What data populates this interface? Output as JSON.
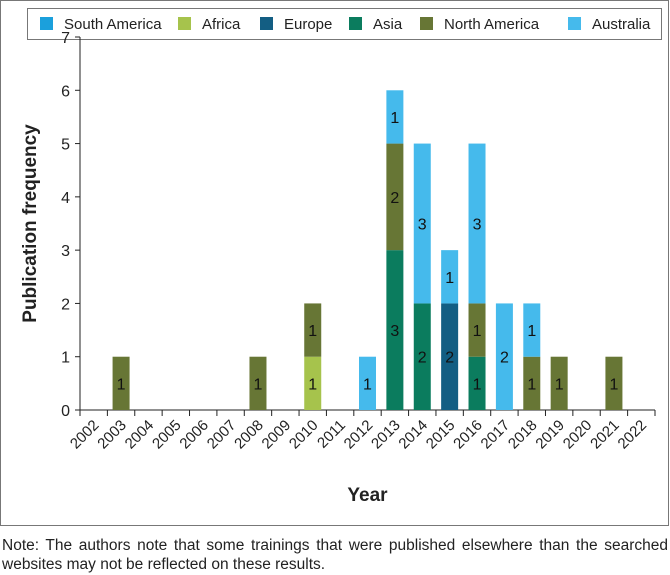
{
  "chart_data": {
    "type": "bar",
    "stacked": true,
    "xlabel": "Year",
    "ylabel": "Publication frequency",
    "ylim": [
      0,
      7
    ],
    "yticks": [
      0,
      1,
      2,
      3,
      4,
      5,
      6,
      7
    ],
    "legend_position": "top",
    "categories": [
      "2002",
      "2003",
      "2004",
      "2005",
      "2006",
      "2007",
      "2008",
      "2009",
      "2010",
      "2011",
      "2012",
      "2013",
      "2014",
      "2015",
      "2016",
      "2017",
      "2018",
      "2019",
      "2020",
      "2021",
      "2022"
    ],
    "legend": [
      {
        "name": "South America",
        "color": "#1ba0dc"
      },
      {
        "name": "Africa",
        "color": "#a6c34c"
      },
      {
        "name": "Europe",
        "color": "#135e83"
      },
      {
        "name": "Asia",
        "color": "#0b7c5e"
      },
      {
        "name": "North America",
        "color": "#677635"
      },
      {
        "name": "Australia",
        "color": "#45baec"
      }
    ],
    "bars": [
      {
        "year": "2003",
        "stack": [
          {
            "seg": "North America",
            "value": 1
          }
        ]
      },
      {
        "year": "2008",
        "stack": [
          {
            "seg": "North America",
            "value": 1
          }
        ]
      },
      {
        "year": "2010",
        "stack": [
          {
            "seg": "Africa",
            "value": 1
          },
          {
            "seg": "North America",
            "value": 1
          }
        ]
      },
      {
        "year": "2012",
        "stack": [
          {
            "seg": "Australia",
            "value": 1
          }
        ]
      },
      {
        "year": "2013",
        "stack": [
          {
            "seg": "Asia",
            "value": 3
          },
          {
            "seg": "North America",
            "value": 2
          },
          {
            "seg": "Australia",
            "value": 1
          }
        ]
      },
      {
        "year": "2014",
        "stack": [
          {
            "seg": "Asia",
            "value": 2
          },
          {
            "seg": "Australia",
            "value": 3
          }
        ]
      },
      {
        "year": "2015",
        "stack": [
          {
            "seg": "Europe",
            "value": 2
          },
          {
            "seg": "Australia",
            "value": 1
          }
        ]
      },
      {
        "year": "2016",
        "stack": [
          {
            "seg": "Asia",
            "value": 1
          },
          {
            "seg": "North America",
            "value": 1
          },
          {
            "seg": "Australia",
            "value": 3
          }
        ]
      },
      {
        "year": "2017",
        "stack": [
          {
            "seg": "Australia",
            "value": 2
          }
        ]
      },
      {
        "year": "2018",
        "stack": [
          {
            "seg": "North America",
            "value": 1
          },
          {
            "seg": "Australia",
            "value": 1
          }
        ]
      },
      {
        "year": "2019",
        "stack": [
          {
            "seg": "North America",
            "value": 1
          }
        ]
      },
      {
        "year": "2021",
        "stack": [
          {
            "seg": "North America",
            "value": 1
          }
        ]
      }
    ]
  },
  "note": "Note: The authors note that some trainings that were published elsewhere than the searched websites may not be reflected on these results."
}
